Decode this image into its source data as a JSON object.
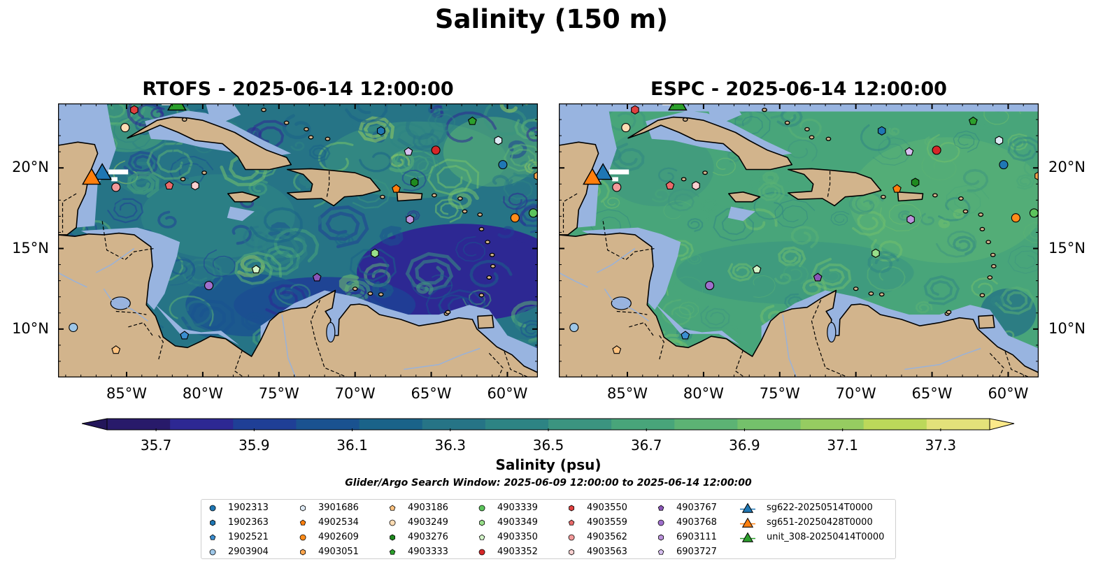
{
  "figure": {
    "title": "Salinity (150 m)",
    "window_text": "Glider/Argo Search Window: 2025-06-09 12:00:00 to 2025-06-14 12:00:00"
  },
  "panels": [
    {
      "title": "RTOFS - 2025-06-14 12:00:00",
      "style": "rtofs"
    },
    {
      "title": "ESPC - 2025-06-14 12:00:00",
      "style": "espc"
    }
  ],
  "axes": {
    "lon_ticks": [
      "85°W",
      "80°W",
      "75°W",
      "70°W",
      "65°W",
      "60°W"
    ],
    "lat_ticks": [
      "20°N",
      "15°N",
      "10°N"
    ],
    "lon_range": [
      -89.5,
      -58.0
    ],
    "lat_range": [
      7.0,
      24.0
    ]
  },
  "colorbar": {
    "label": "Salinity (psu)",
    "ticks": [
      "35.7",
      "35.9",
      "36.1",
      "36.3",
      "36.5",
      "36.7",
      "36.9",
      "37.1",
      "37.3"
    ],
    "min": 35.6,
    "max": 37.4,
    "colors": [
      "#281a6a",
      "#2d2893",
      "#1f3f96",
      "#1a5290",
      "#1a6389",
      "#267486",
      "#2d8484",
      "#3b9480",
      "#48a57a",
      "#5cb374",
      "#74c16b",
      "#96cc61",
      "#bcd85a",
      "#e3e17a"
    ],
    "under_color": "#23165a",
    "over_color": "#fbe98a"
  },
  "map_colors": {
    "land": "#d2b48c",
    "shelf": "#98b4e0",
    "coast": "#000000"
  },
  "legend": {
    "columns": [
      [
        {
          "label": "1902313",
          "shape": "circle",
          "color": "#1f77b4"
        },
        {
          "label": "1902363",
          "shape": "hexagon",
          "color": "#1f77b4"
        },
        {
          "label": "1902521",
          "shape": "pentagon",
          "color": "#3b8ed0"
        },
        {
          "label": "2903904",
          "shape": "circle",
          "color": "#9ec7e8"
        }
      ],
      [
        {
          "label": "3901686",
          "shape": "hexagon",
          "color": "#deeaf5"
        },
        {
          "label": "4902534",
          "shape": "pentagon",
          "color": "#ff7f0e"
        },
        {
          "label": "4902609",
          "shape": "circle",
          "color": "#ff8c1a"
        },
        {
          "label": "4903051",
          "shape": "hexagon",
          "color": "#ffa64d"
        }
      ],
      [
        {
          "label": "4903186",
          "shape": "pentagon",
          "color": "#ffc380"
        },
        {
          "label": "4903249",
          "shape": "circle",
          "color": "#ffdcb3"
        },
        {
          "label": "4903276",
          "shape": "hexagon",
          "color": "#1f8a1f"
        },
        {
          "label": "4903333",
          "shape": "pentagon",
          "color": "#2ca02c"
        }
      ],
      [
        {
          "label": "4903339",
          "shape": "circle",
          "color": "#5cc45c"
        },
        {
          "label": "4903349",
          "shape": "hexagon",
          "color": "#98df8a"
        },
        {
          "label": "4903350",
          "shape": "pentagon",
          "color": "#d4f5c9"
        },
        {
          "label": "4903352",
          "shape": "circle",
          "color": "#d62728"
        }
      ],
      [
        {
          "label": "4903550",
          "shape": "hexagon",
          "color": "#e0403f"
        },
        {
          "label": "4903559",
          "shape": "pentagon",
          "color": "#ea6a6a"
        },
        {
          "label": "4903562",
          "shape": "circle",
          "color": "#f29a9a"
        },
        {
          "label": "4903563",
          "shape": "hexagon",
          "color": "#fbd0d0"
        }
      ],
      [
        {
          "label": "4903767",
          "shape": "pentagon",
          "color": "#8a55b8"
        },
        {
          "label": "4903768",
          "shape": "circle",
          "color": "#9f6fcc"
        },
        {
          "label": "6903111",
          "shape": "hexagon",
          "color": "#bb92dc"
        },
        {
          "label": "6903727",
          "shape": "pentagon",
          "color": "#d7bff0"
        }
      ],
      [
        {
          "label": "sg622-20250514T0000",
          "shape": "triangle",
          "color": "#1f77b4"
        },
        {
          "label": "sg651-20250428T0000",
          "shape": "triangle",
          "color": "#ff7f0e"
        },
        {
          "label": "unit_308-20250414T0000",
          "shape": "triangle",
          "color": "#2ca02c"
        }
      ]
    ]
  },
  "markers": [
    {
      "id": "1902313",
      "lon": -60.3,
      "lat": 20.2
    },
    {
      "id": "1902363",
      "lon": -68.3,
      "lat": 22.3
    },
    {
      "id": "1902521",
      "lon": -81.2,
      "lat": 9.6
    },
    {
      "id": "2903904",
      "lon": -88.5,
      "lat": 10.1
    },
    {
      "id": "3901686",
      "lon": -60.6,
      "lat": 21.7
    },
    {
      "id": "4902534",
      "lon": -67.3,
      "lat": 18.7
    },
    {
      "id": "4902609",
      "lon": -59.5,
      "lat": 16.9
    },
    {
      "id": "4903051",
      "lon": -58.0,
      "lat": 19.5
    },
    {
      "id": "4903186",
      "lon": -85.7,
      "lat": 8.7
    },
    {
      "id": "4903249",
      "lon": -85.1,
      "lat": 22.5
    },
    {
      "id": "4903276",
      "lon": -66.1,
      "lat": 19.1
    },
    {
      "id": "4903333",
      "lon": -62.3,
      "lat": 22.9
    },
    {
      "id": "4903339",
      "lon": -58.3,
      "lat": 17.2
    },
    {
      "id": "4903349",
      "lon": -68.7,
      "lat": 14.7
    },
    {
      "id": "4903350",
      "lon": -76.5,
      "lat": 13.7
    },
    {
      "id": "4903352",
      "lon": -64.7,
      "lat": 21.1
    },
    {
      "id": "4903550",
      "lon": -84.5,
      "lat": 23.6
    },
    {
      "id": "4903559",
      "lon": -82.2,
      "lat": 18.9
    },
    {
      "id": "4903562",
      "lon": -85.7,
      "lat": 18.8
    },
    {
      "id": "4903563",
      "lon": -80.5,
      "lat": 18.9
    },
    {
      "id": "4903767",
      "lon": -72.5,
      "lat": 13.2
    },
    {
      "id": "4903768",
      "lon": -79.6,
      "lat": 12.7
    },
    {
      "id": "6903111",
      "lon": -66.4,
      "lat": 16.8
    },
    {
      "id": "6903727",
      "lon": -66.5,
      "lat": 21.0
    },
    {
      "id": "sg622-20250514T0000",
      "lon": -86.6,
      "lat": 19.7
    },
    {
      "id": "sg651-20250428T0000",
      "lon": -87.3,
      "lat": 19.4
    },
    {
      "id": "unit_308-20250414T0000",
      "lon": -81.7,
      "lat": 24.0
    }
  ]
}
